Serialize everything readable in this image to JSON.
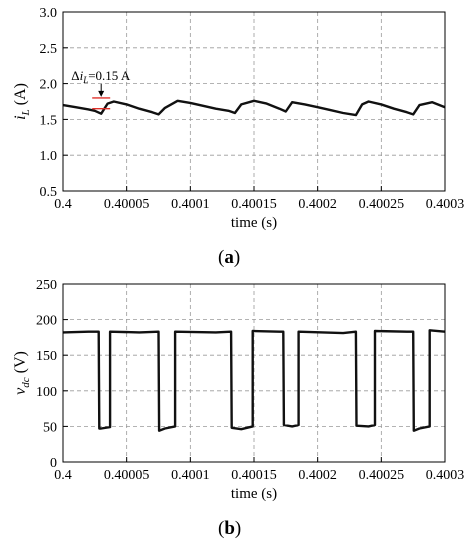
{
  "chart_data": [
    {
      "panel_label": "a",
      "type": "line",
      "xlabel": "time (s)",
      "ylabel_main": "i",
      "ylabel_sub": "L",
      "ylabel_unit": " (A)",
      "xlim": [
        0.4,
        0.4003
      ],
      "ylim": [
        0.5,
        3.0
      ],
      "x_ticks": [
        "0.4",
        "0.40005",
        "0.4001",
        "0.40015",
        "0.4002",
        "0.40025",
        "0.4003"
      ],
      "y_ticks": [
        "0.5",
        "1.0",
        "1.5",
        "2.0",
        "2.5",
        "3.0"
      ],
      "grid": true,
      "grid_style": "dashed",
      "line_color": "#111111",
      "annotation": {
        "prefix": "Δ",
        "var": "i",
        "sub": "L",
        "suffix": "=0.15 A",
        "x": 0.40003,
        "y_low": 1.65,
        "y_high": 1.8,
        "marker_color": "#e0302a"
      },
      "series": [
        {
          "x": [
            0.4,
            0.40001,
            0.40002,
            0.400025,
            0.40003,
            0.400035,
            0.40004,
            0.40005,
            0.40006,
            0.40007,
            0.400075,
            0.40008,
            0.40009,
            0.4001,
            0.40011,
            0.40012,
            0.40013,
            0.400135,
            0.40014,
            0.40015,
            0.40016,
            0.40017,
            0.400175,
            0.40018,
            0.40019,
            0.4002,
            0.40021,
            0.40022,
            0.40023,
            0.400235,
            0.40024,
            0.40025,
            0.40026,
            0.40027,
            0.400275,
            0.40028,
            0.40029,
            0.4003
          ],
          "y": [
            1.7,
            1.67,
            1.64,
            1.62,
            1.58,
            1.72,
            1.75,
            1.71,
            1.65,
            1.6,
            1.57,
            1.66,
            1.76,
            1.73,
            1.69,
            1.65,
            1.62,
            1.59,
            1.71,
            1.76,
            1.72,
            1.65,
            1.61,
            1.74,
            1.71,
            1.67,
            1.63,
            1.59,
            1.56,
            1.71,
            1.75,
            1.71,
            1.65,
            1.6,
            1.57,
            1.7,
            1.74,
            1.67
          ]
        }
      ]
    },
    {
      "panel_label": "b",
      "type": "line",
      "xlabel": "time (s)",
      "ylabel_main": "v",
      "ylabel_sub": "dc",
      "ylabel_unit": " (V)",
      "xlim": [
        0.4,
        0.4003
      ],
      "ylim": [
        0,
        250
      ],
      "x_ticks": [
        "0.4",
        "0.40005",
        "0.4001",
        "0.40015",
        "0.4002",
        "0.40025",
        "0.4003"
      ],
      "y_ticks": [
        "0",
        "50",
        "100",
        "150",
        "200",
        "250"
      ],
      "grid": true,
      "grid_style": "dashed",
      "line_color": "#111111",
      "series": [
        {
          "x": [
            0.4,
            0.40002,
            0.400028,
            0.4000285,
            0.40003,
            0.400037,
            0.400037,
            0.40006,
            0.400075,
            0.4000755,
            0.40008,
            0.400088,
            0.400088,
            0.40012,
            0.400132,
            0.4001325,
            0.40014,
            0.400149,
            0.400149,
            0.40017,
            0.400173,
            0.4001735,
            0.40018,
            0.400185,
            0.400185,
            0.40022,
            0.40023,
            0.4002305,
            0.40024,
            0.400245,
            0.400245,
            0.40027,
            0.400275,
            0.4002755,
            0.40028,
            0.400288,
            0.400288,
            0.4003
          ],
          "y": [
            182,
            183,
            183,
            47,
            47,
            49,
            183,
            182,
            183,
            44,
            47,
            50,
            183,
            182,
            183,
            48,
            46,
            50,
            184,
            183,
            183,
            52,
            50,
            52,
            183,
            181,
            183,
            51,
            50,
            52,
            184,
            183,
            183,
            44,
            47,
            50,
            185,
            183
          ]
        }
      ]
    }
  ]
}
